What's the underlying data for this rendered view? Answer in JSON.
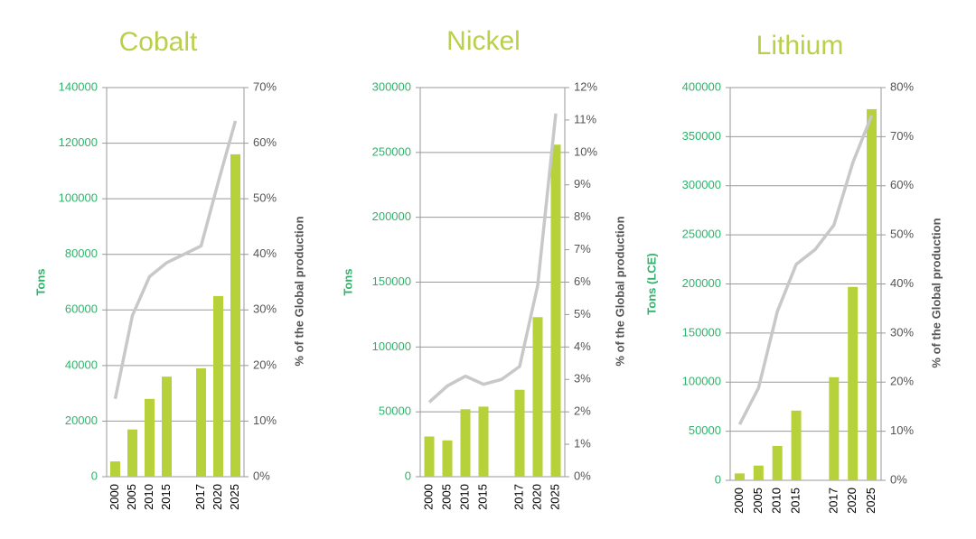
{
  "chart_data": [
    {
      "type": "combo",
      "title": "Cobalt",
      "y_label": "Tons",
      "y2_label": "% of the Global production",
      "categories": [
        "2000",
        "2005",
        "2010",
        "2015",
        null,
        "2017",
        "2020",
        "2025"
      ],
      "series": [
        {
          "type": "bar",
          "color": "#b6d13a",
          "values": [
            5500,
            17000,
            28000,
            36000,
            null,
            39000,
            65000,
            116000
          ]
        },
        {
          "type": "line",
          "axis": "y2",
          "color": "#c8c8c8",
          "values": [
            14,
            29,
            36,
            38.5,
            40,
            41.5,
            53,
            64
          ]
        }
      ],
      "ylim": [
        0,
        140000
      ],
      "yticks": [
        0,
        20000,
        40000,
        60000,
        80000,
        100000,
        120000,
        140000
      ],
      "y2lim": [
        0,
        70
      ],
      "y2ticks": [
        {
          "value": 0,
          "label": "0%"
        },
        {
          "value": 10,
          "label": "10%"
        },
        {
          "value": 20,
          "label": "20%"
        },
        {
          "value": 30,
          "label": "30%"
        },
        {
          "value": 40,
          "label": "40%"
        },
        {
          "value": 50,
          "label": "50%"
        },
        {
          "value": 60,
          "label": "60%"
        },
        {
          "value": 70,
          "label": "70%"
        }
      ],
      "grid": true
    },
    {
      "type": "combo",
      "title": "Nickel",
      "y_label": "Tons",
      "y2_label": "% of the Global production",
      "categories": [
        "2000",
        "2005",
        "2010",
        "2015",
        null,
        "2017",
        "2020",
        "2025"
      ],
      "series": [
        {
          "type": "bar",
          "color": "#b6d13a",
          "values": [
            31000,
            28000,
            52000,
            54000,
            null,
            67000,
            123000,
            256000
          ]
        },
        {
          "type": "line",
          "axis": "y2",
          "color": "#c8c8c8",
          "values": [
            2.3,
            2.8,
            3.1,
            2.85,
            3.0,
            3.4,
            5.9,
            11.2
          ]
        }
      ],
      "ylim": [
        0,
        300000
      ],
      "yticks": [
        0,
        50000,
        100000,
        150000,
        200000,
        250000,
        300000
      ],
      "y2lim": [
        0,
        12
      ],
      "y2ticks": [
        {
          "value": 0,
          "label": "0%"
        },
        {
          "value": 1,
          "label": "1%"
        },
        {
          "value": 2,
          "label": "2%"
        },
        {
          "value": 3,
          "label": "3%"
        },
        {
          "value": 4,
          "label": "4%"
        },
        {
          "value": 5,
          "label": "5%"
        },
        {
          "value": 6,
          "label": "6%"
        },
        {
          "value": 7,
          "label": "7%"
        },
        {
          "value": 8,
          "label": "8%"
        },
        {
          "value": 9,
          "label": "9%"
        },
        {
          "value": 10,
          "label": "10%"
        },
        {
          "value": 11,
          "label": "11%"
        },
        {
          "value": 12,
          "label": "12%"
        }
      ],
      "grid": true
    },
    {
      "type": "combo",
      "title": "Lithium",
      "y_label": "Tons (LCE)",
      "y2_label": "% of the Global production",
      "categories": [
        "2000",
        "2005",
        "2010",
        "2015",
        null,
        "2017",
        "2020",
        "2025"
      ],
      "series": [
        {
          "type": "bar",
          "color": "#b6d13a",
          "values": [
            7000,
            15000,
            35000,
            71000,
            null,
            105000,
            197000,
            378000
          ]
        },
        {
          "type": "line",
          "axis": "y2",
          "color": "#c8c8c8",
          "values": [
            11.4,
            18.8,
            34.4,
            44,
            47,
            52,
            64.7,
            74.3
          ]
        }
      ],
      "ylim": [
        0,
        400000
      ],
      "yticks": [
        0,
        50000,
        100000,
        150000,
        200000,
        250000,
        300000,
        350000,
        400000
      ],
      "y2lim": [
        0,
        80
      ],
      "y2ticks": [
        {
          "value": 0,
          "label": "0%"
        },
        {
          "value": 10,
          "label": "10%"
        },
        {
          "value": 20,
          "label": "20%"
        },
        {
          "value": 30,
          "label": "30%"
        },
        {
          "value": 40,
          "label": "40%"
        },
        {
          "value": 50,
          "label": "50%"
        },
        {
          "value": 60,
          "label": "60%"
        },
        {
          "value": 70,
          "label": "70%"
        },
        {
          "value": 80,
          "label": "80%"
        }
      ],
      "grid": true
    }
  ]
}
